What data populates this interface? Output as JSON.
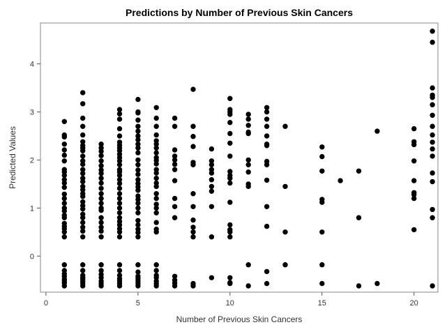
{
  "chart_data": {
    "type": "scatter",
    "title": "Predictions by Number of Previous Skin Cancers",
    "xlabel": "Number of Previous Skin Cancers",
    "ylabel": "Predicted Values",
    "xlim": [
      -0.3,
      21.3
    ],
    "ylim": [
      -0.75,
      4.85
    ],
    "xticks": [
      0,
      5,
      10,
      15,
      20
    ],
    "yticks": [
      0,
      1,
      2,
      3,
      4
    ],
    "grid": false,
    "legend": "none",
    "marker_color": "#000000",
    "series": [
      {
        "groups": [
          {
            "x": 1,
            "y": [
              2.8,
              2.52,
              2.48,
              2.33,
              2.21,
              2.1,
              1.98,
              1.8,
              1.75,
              1.68,
              1.59,
              1.52,
              1.43,
              1.29,
              1.2,
              1.1,
              1.0,
              0.94,
              0.85,
              0.8,
              0.68,
              0.62,
              0.57,
              0.5,
              0.4,
              -0.18,
              -0.3,
              -0.37,
              -0.42,
              -0.48,
              -0.52,
              -0.56,
              -0.62
            ]
          },
          {
            "x": 2,
            "y": [
              3.4,
              3.17,
              2.87,
              2.7,
              2.52,
              2.38,
              2.3,
              2.25,
              2.19,
              2.08,
              1.98,
              1.91,
              1.8,
              1.72,
              1.62,
              1.55,
              1.45,
              1.38,
              1.3,
              1.24,
              1.13,
              1.05,
              0.98,
              0.87,
              0.8,
              0.7,
              0.6,
              0.52,
              0.4,
              -0.18,
              -0.3,
              -0.4,
              -0.45,
              -0.48,
              -0.53,
              -0.57,
              -0.62
            ]
          },
          {
            "x": 3,
            "y": [
              2.33,
              2.25,
              2.18,
              2.09,
              1.98,
              1.88,
              1.79,
              1.72,
              1.62,
              1.52,
              1.41,
              1.3,
              1.2,
              1.1,
              1.0,
              0.95,
              0.8,
              0.7,
              0.6,
              0.52,
              0.4,
              -0.18,
              -0.3,
              -0.38,
              -0.45,
              -0.52,
              -0.57,
              -0.62
            ]
          },
          {
            "x": 4,
            "y": [
              3.05,
              2.96,
              2.85,
              2.65,
              2.5,
              2.37,
              2.31,
              2.25,
              2.19,
              2.12,
              2.05,
              1.98,
              1.9,
              1.8,
              1.75,
              1.68,
              1.59,
              1.51,
              1.41,
              1.3,
              1.2,
              1.1,
              1.0,
              0.9,
              0.8,
              0.72,
              0.65,
              0.57,
              0.5,
              0.4,
              -0.18,
              -0.3,
              -0.4,
              -0.47,
              -0.52,
              -0.57,
              -0.62
            ]
          },
          {
            "x": 5,
            "y": [
              3.26,
              3.0,
              2.98,
              2.83,
              2.7,
              2.6,
              2.5,
              2.42,
              2.33,
              2.25,
              2.15,
              2.0,
              1.9,
              1.79,
              1.7,
              1.59,
              1.51,
              1.44,
              1.37,
              1.25,
              1.18,
              1.1,
              1.0,
              0.9,
              0.74,
              0.65,
              0.56,
              0.49,
              0.4,
              -0.18,
              -0.33,
              -0.42,
              -0.47,
              -0.52,
              -0.57,
              -0.62
            ]
          },
          {
            "x": 6,
            "y": [
              3.09,
              2.87,
              2.7,
              2.52,
              2.4,
              2.33,
              2.25,
              2.15,
              2.05,
              1.99,
              1.92,
              1.8,
              1.73,
              1.62,
              1.52,
              1.45,
              1.3,
              1.2,
              1.08,
              1.0,
              0.9,
              0.7,
              0.56,
              0.5,
              -0.18,
              -0.3,
              -0.4,
              -0.45,
              -0.52,
              -0.57,
              -0.62
            ]
          },
          {
            "x": 7,
            "y": [
              2.87,
              2.7,
              2.21,
              2.08,
              2.0,
              1.91,
              1.8,
              1.57,
              1.2,
              1.03,
              0.8,
              -0.42,
              -0.5,
              -0.56,
              -0.62
            ]
          },
          {
            "x": 8,
            "y": [
              3.47,
              2.7,
              2.49,
              2.28,
              1.95,
              1.9,
              1.3,
              1.03,
              0.75,
              0.6,
              0.5,
              0.4,
              -0.57,
              -0.62
            ]
          },
          {
            "x": 9,
            "y": [
              2.23,
              1.98,
              1.9,
              1.8,
              1.73,
              1.59,
              1.45,
              1.35,
              1.03,
              0.4,
              -0.45
            ]
          },
          {
            "x": 10,
            "y": [
              3.28,
              3.05,
              3.0,
              2.95,
              2.78,
              2.55,
              2.35,
              2.08,
              1.76,
              1.68,
              1.62,
              1.52,
              1.12,
              0.65,
              0.55,
              0.5,
              0.4,
              -0.45,
              -0.55,
              -0.57
            ]
          },
          {
            "x": 11,
            "y": [
              2.95,
              2.85,
              2.72,
              2.58,
              2.55,
              2.0,
              1.9,
              1.75,
              1.5,
              1.45,
              -0.18,
              -0.62
            ]
          },
          {
            "x": 12,
            "y": [
              3.09,
              3.0,
              2.85,
              2.7,
              2.5,
              2.33,
              2.3,
              1.97,
              1.9,
              1.58,
              1.03,
              0.62,
              -0.32,
              -0.57
            ]
          },
          {
            "x": 13,
            "y": [
              2.7,
              1.45,
              0.5,
              -0.18
            ]
          },
          {
            "x": 15,
            "y": [
              2.27,
              2.07,
              1.77,
              1.18,
              1.12,
              0.5,
              -0.18,
              -0.57
            ]
          },
          {
            "x": 16,
            "y": [
              1.57
            ]
          },
          {
            "x": 17,
            "y": [
              1.77,
              0.8,
              -0.62
            ]
          },
          {
            "x": 18,
            "y": [
              2.6,
              -0.57
            ]
          },
          {
            "x": 20,
            "y": [
              2.65,
              2.38,
              2.32,
              1.98,
              1.57,
              1.32,
              1.28,
              1.2,
              0.55
            ]
          },
          {
            "x": 21,
            "y": [
              4.68,
              4.45,
              3.5,
              3.35,
              3.3,
              3.15,
              2.93,
              2.7,
              2.52,
              2.37,
              2.23,
              2.08,
              1.73,
              1.55,
              0.97,
              0.8,
              -0.62
            ]
          }
        ]
      }
    ]
  }
}
